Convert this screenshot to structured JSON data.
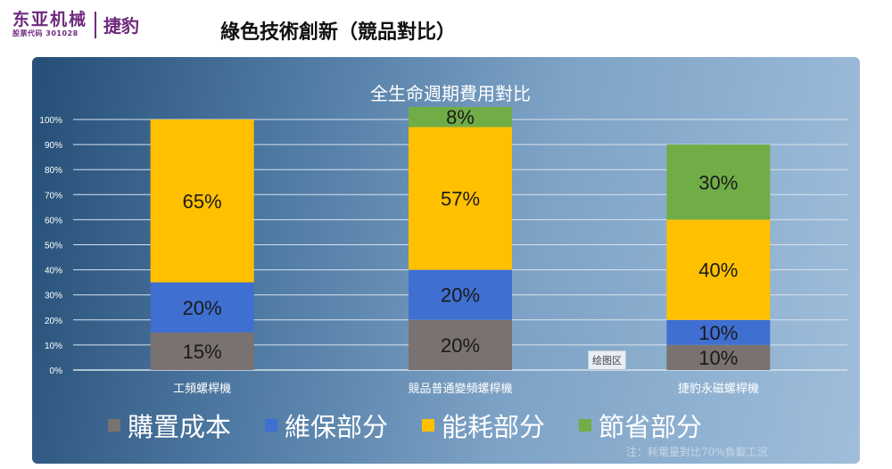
{
  "logo": {
    "company": "东亚机械",
    "stock_code": "股票代码 301028",
    "brand": "捷豹"
  },
  "page_title": "綠色技術創新（競品對比）",
  "chart_title": "全生命週期費用對比",
  "plot_area_tag": "绘图区",
  "note": "注：耗電量對比70%負載工況",
  "colors": {
    "購置成本": "#7a7270",
    "維保部分": "#3f6fd1",
    "能耗部分": "#ffc000",
    "節省部分": "#70ad47"
  },
  "chart_data": {
    "type": "bar",
    "stacked": true,
    "categories": [
      "工頻螺桿機",
      "競品普通變頻螺桿機",
      "捷豹永磁螺桿機"
    ],
    "series": [
      {
        "name": "購置成本",
        "values": [
          15,
          20,
          10
        ]
      },
      {
        "name": "維保部分",
        "values": [
          20,
          20,
          10
        ]
      },
      {
        "name": "能耗部分",
        "values": [
          65,
          57,
          40
        ]
      },
      {
        "name": "節省部分",
        "values": [
          0,
          8,
          30
        ]
      }
    ],
    "data_labels": [
      [
        "15%",
        "20%",
        "65%",
        ""
      ],
      [
        "20%",
        "20%",
        "57%",
        "8%"
      ],
      [
        "10%",
        "10%",
        "40%",
        "30%"
      ]
    ],
    "y_ticks": [
      "0%",
      "10%",
      "20%",
      "30%",
      "40%",
      "50%",
      "60%",
      "70%",
      "80%",
      "90%",
      "100%"
    ],
    "ylim": [
      0,
      100
    ],
    "grid": true,
    "legend": "bottom"
  }
}
